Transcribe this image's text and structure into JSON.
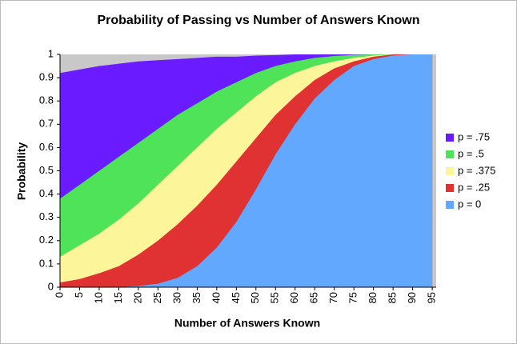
{
  "chart_data": {
    "type": "area",
    "title": "Probability of Passing vs Number of Answers Known",
    "x_label": "Number of Answers Known",
    "y_label": "Probability",
    "x": [
      0,
      5,
      10,
      15,
      20,
      25,
      30,
      35,
      40,
      45,
      50,
      55,
      60,
      65,
      70,
      75,
      80,
      85,
      90,
      95
    ],
    "series": [
      {
        "name": "p = .75",
        "color": "#6a1bff",
        "values": [
          0.92,
          0.935,
          0.95,
          0.96,
          0.97,
          0.975,
          0.98,
          0.985,
          0.99,
          0.99,
          0.995,
          0.997,
          1,
          1,
          1,
          1,
          1,
          1,
          1,
          1
        ]
      },
      {
        "name": "p = .5",
        "color": "#4fe35a",
        "values": [
          0.38,
          0.44,
          0.5,
          0.56,
          0.62,
          0.68,
          0.74,
          0.79,
          0.84,
          0.88,
          0.92,
          0.95,
          0.97,
          0.985,
          0.993,
          0.998,
          1,
          1,
          1,
          1
        ]
      },
      {
        "name": "p = .375",
        "color": "#fdf59a",
        "values": [
          0.13,
          0.18,
          0.23,
          0.29,
          0.36,
          0.44,
          0.52,
          0.6,
          0.68,
          0.75,
          0.82,
          0.88,
          0.92,
          0.95,
          0.97,
          0.985,
          0.995,
          1,
          1,
          1
        ]
      },
      {
        "name": "p = .25",
        "color": "#e03232",
        "values": [
          0.02,
          0.035,
          0.06,
          0.09,
          0.14,
          0.2,
          0.27,
          0.35,
          0.44,
          0.54,
          0.64,
          0.74,
          0.82,
          0.89,
          0.94,
          0.97,
          0.99,
          1,
          1,
          1
        ]
      },
      {
        "name": "p = 0",
        "color": "#62a8ff",
        "values": [
          0,
          0,
          0,
          0,
          0.005,
          0.015,
          0.04,
          0.09,
          0.17,
          0.28,
          0.42,
          0.57,
          0.7,
          0.81,
          0.89,
          0.95,
          0.98,
          0.995,
          1,
          1
        ]
      }
    ],
    "xlim": [
      0,
      96
    ],
    "xticks": [
      0,
      5,
      10,
      15,
      20,
      25,
      30,
      35,
      40,
      45,
      50,
      55,
      60,
      65,
      70,
      75,
      80,
      85,
      90,
      95
    ],
    "ylim": [
      0,
      1
    ],
    "yticks": [
      0,
      0.1,
      0.2,
      0.3,
      0.4,
      0.5,
      0.6,
      0.7,
      0.8,
      0.9,
      1
    ],
    "plot_background": "#c8c8c8",
    "legend": "right"
  }
}
